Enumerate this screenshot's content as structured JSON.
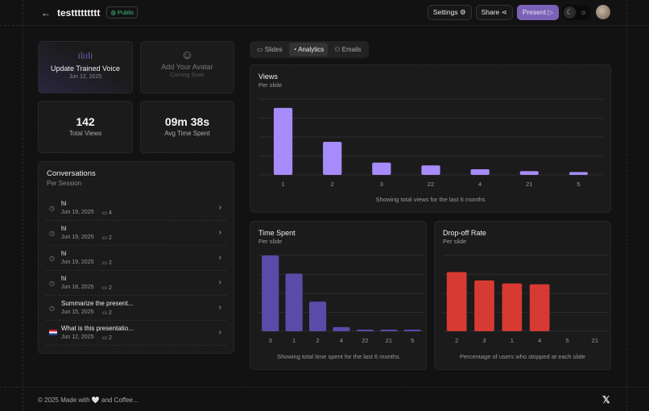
{
  "header": {
    "title": "testtttttttt",
    "visibility": "Public",
    "settings": "Settings",
    "share": "Share",
    "present": "Present"
  },
  "cards": {
    "voice": {
      "title": "Update Trained Voice",
      "date": "Jun 12, 2025"
    },
    "avatar": {
      "title": "Add Your Avatar",
      "sub": "Coming Soon"
    },
    "views": {
      "value": "142",
      "label": "Total Views"
    },
    "time": {
      "value": "09m 38s",
      "label": "Avg Time Spent"
    }
  },
  "conversations": {
    "title": "Conversations",
    "subtitle": "Per Session",
    "items": [
      {
        "title": "hi",
        "date": "Jun 19, 2025",
        "messages": "4",
        "icon": "clock"
      },
      {
        "title": "hi",
        "date": "Jun 19, 2025",
        "messages": "2",
        "icon": "clock"
      },
      {
        "title": "hi",
        "date": "Jun 19, 2025",
        "messages": "2",
        "icon": "clock"
      },
      {
        "title": "hi",
        "date": "Jun 18, 2025",
        "messages": "2",
        "icon": "clock"
      },
      {
        "title": "Summarize the present...",
        "date": "Jun 15, 2025",
        "messages": "2",
        "icon": "clock"
      },
      {
        "title": "What is this presentatio...",
        "date": "Jun 12, 2025",
        "messages": "2",
        "icon": "flag-nl"
      }
    ]
  },
  "tabs": [
    {
      "label": "Slides"
    },
    {
      "label": "Analytics",
      "active": true
    },
    {
      "label": "Emails"
    }
  ],
  "chart_data": [
    {
      "type": "bar",
      "title": "Views",
      "subtitle": "Per slide",
      "categories": [
        "1",
        "2",
        "3",
        "22",
        "4",
        "21",
        "5"
      ],
      "values": [
        71,
        35,
        13,
        10,
        6,
        4,
        3
      ],
      "caption": "Showing total views for the last 6 months",
      "color": "#a78bfa",
      "grid": true
    },
    {
      "type": "bar",
      "title": "Time Spent",
      "subtitle": "Per slide",
      "categories": [
        "3",
        "1",
        "2",
        "4",
        "22",
        "21",
        "5"
      ],
      "values": [
        92,
        70,
        36,
        5,
        2,
        2,
        2
      ],
      "caption": "Showing total time spent for the last 6 months",
      "color": "#5b4ba8",
      "grid": true
    },
    {
      "type": "bar",
      "title": "Drop-off Rate",
      "subtitle": "Per slide",
      "categories": [
        "2",
        "3",
        "1",
        "4",
        "5",
        "21"
      ],
      "values": [
        78,
        67,
        63,
        62,
        0,
        0
      ],
      "caption": "Percentage of users who stopped at each slide",
      "color": "#d63a32",
      "grid": true
    }
  ],
  "footer": {
    "text": "© 2025 Made with 🤍 and Coffee..."
  }
}
